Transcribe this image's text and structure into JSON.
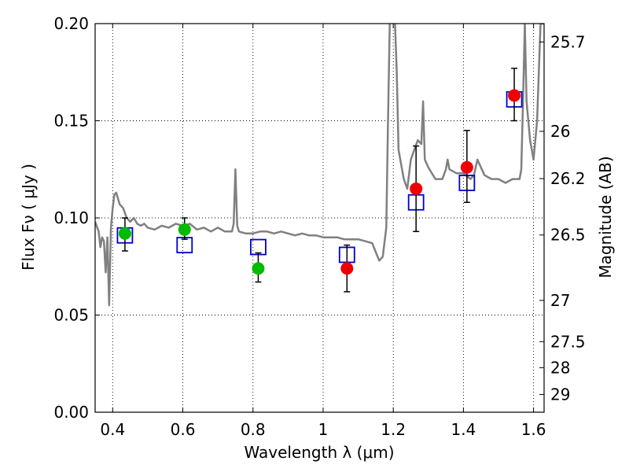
{
  "chart_data": {
    "type": "scatter",
    "xlabel": "Wavelength  λ (μm)",
    "ylabel": "Flux  Fν  ( μJy )",
    "y2label": "Magnitude (AB)",
    "xlim": [
      0.35,
      1.63
    ],
    "ylim": [
      0.0,
      0.2
    ],
    "grid": true,
    "x_ticks": [
      0.4,
      0.6,
      0.8,
      1.0,
      1.2,
      1.4,
      1.6
    ],
    "x_tick_labels": [
      "0.4",
      "0.6",
      "0.8",
      "1",
      "1.2",
      "1.4",
      "1.6"
    ],
    "y_ticks": [
      0.0,
      0.05,
      0.1,
      0.15,
      0.2
    ],
    "y_tick_labels": [
      "0.00",
      "0.05",
      "0.10",
      "0.15",
      "0.20"
    ],
    "mag_ticks": [
      25.7,
      26,
      26.2,
      26.5,
      27,
      27.5,
      28,
      29
    ],
    "mag_tick_labels": [
      "25.7",
      "26",
      "26.2",
      "26.5",
      "27",
      "27.5",
      "28",
      "29"
    ],
    "colors": {
      "sed": "#808080",
      "model": "#0000cc",
      "green": "#00bb00",
      "red": "#ee0000",
      "errorbar": "#000000"
    },
    "series": [
      {
        "name": "SED model spectrum",
        "style": "line",
        "x": [
          0.35,
          0.36,
          0.365,
          0.37,
          0.375,
          0.38,
          0.385,
          0.39,
          0.395,
          0.4,
          0.405,
          0.41,
          0.42,
          0.43,
          0.44,
          0.45,
          0.46,
          0.47,
          0.48,
          0.49,
          0.5,
          0.52,
          0.54,
          0.56,
          0.58,
          0.6,
          0.62,
          0.64,
          0.66,
          0.68,
          0.7,
          0.72,
          0.74,
          0.745,
          0.75,
          0.755,
          0.76,
          0.78,
          0.8,
          0.82,
          0.84,
          0.86,
          0.88,
          0.9,
          0.92,
          0.94,
          0.96,
          0.98,
          1.0,
          1.02,
          1.04,
          1.06,
          1.08,
          1.1,
          1.12,
          1.14,
          1.16,
          1.17,
          1.18,
          1.185,
          1.19,
          1.195,
          1.2,
          1.205,
          1.21,
          1.215,
          1.22,
          1.23,
          1.24,
          1.25,
          1.26,
          1.27,
          1.28,
          1.285,
          1.29,
          1.3,
          1.32,
          1.34,
          1.35,
          1.355,
          1.36,
          1.38,
          1.4,
          1.42,
          1.43,
          1.44,
          1.46,
          1.48,
          1.5,
          1.52,
          1.54,
          1.56,
          1.565,
          1.57,
          1.575,
          1.58,
          1.59,
          1.6,
          1.61,
          1.62,
          1.63
        ],
        "y": [
          0.098,
          0.093,
          0.085,
          0.09,
          0.088,
          0.072,
          0.09,
          0.055,
          0.095,
          0.105,
          0.112,
          0.113,
          0.107,
          0.105,
          0.1,
          0.098,
          0.1,
          0.097,
          0.096,
          0.097,
          0.095,
          0.094,
          0.096,
          0.095,
          0.097,
          0.096,
          0.097,
          0.094,
          0.095,
          0.093,
          0.095,
          0.093,
          0.093,
          0.097,
          0.125,
          0.096,
          0.093,
          0.092,
          0.092,
          0.093,
          0.093,
          0.092,
          0.093,
          0.092,
          0.091,
          0.092,
          0.091,
          0.091,
          0.09,
          0.09,
          0.09,
          0.089,
          0.089,
          0.089,
          0.088,
          0.087,
          0.078,
          0.08,
          0.095,
          0.15,
          0.2,
          0.21,
          0.21,
          0.2,
          0.175,
          0.135,
          0.13,
          0.12,
          0.115,
          0.13,
          0.135,
          0.14,
          0.138,
          0.16,
          0.13,
          0.126,
          0.12,
          0.12,
          0.125,
          0.13,
          0.125,
          0.123,
          0.123,
          0.12,
          0.122,
          0.13,
          0.122,
          0.12,
          0.12,
          0.118,
          0.12,
          0.12,
          0.125,
          0.16,
          0.2,
          0.16,
          0.14,
          0.13,
          0.15,
          0.2,
          0.2
        ]
      },
      {
        "name": "Model photometry",
        "style": "open-square",
        "points": [
          {
            "x": 0.435,
            "y": 0.091
          },
          {
            "x": 0.605,
            "y": 0.086
          },
          {
            "x": 0.815,
            "y": 0.085
          },
          {
            "x": 1.068,
            "y": 0.081
          },
          {
            "x": 1.265,
            "y": 0.108
          },
          {
            "x": 1.41,
            "y": 0.118
          },
          {
            "x": 1.545,
            "y": 0.161
          }
        ]
      },
      {
        "name": "Observed (green)",
        "style": "filled-circle",
        "color": "#00bb00",
        "points": [
          {
            "x": 0.435,
            "y": 0.092,
            "yerr_low": 0.083,
            "yerr_high": 0.1
          },
          {
            "x": 0.605,
            "y": 0.094,
            "yerr_low": 0.089,
            "yerr_high": 0.1
          },
          {
            "x": 0.815,
            "y": 0.074,
            "yerr_low": 0.067,
            "yerr_high": 0.082
          }
        ]
      },
      {
        "name": "Observed (red)",
        "style": "filled-circle",
        "color": "#ee0000",
        "points": [
          {
            "x": 1.068,
            "y": 0.074,
            "yerr_low": 0.062,
            "yerr_high": 0.086
          },
          {
            "x": 1.265,
            "y": 0.115,
            "yerr_low": 0.093,
            "yerr_high": 0.137
          },
          {
            "x": 1.41,
            "y": 0.126,
            "yerr_low": 0.108,
            "yerr_high": 0.145
          },
          {
            "x": 1.545,
            "y": 0.163,
            "yerr_low": 0.15,
            "yerr_high": 0.177
          }
        ]
      }
    ]
  }
}
